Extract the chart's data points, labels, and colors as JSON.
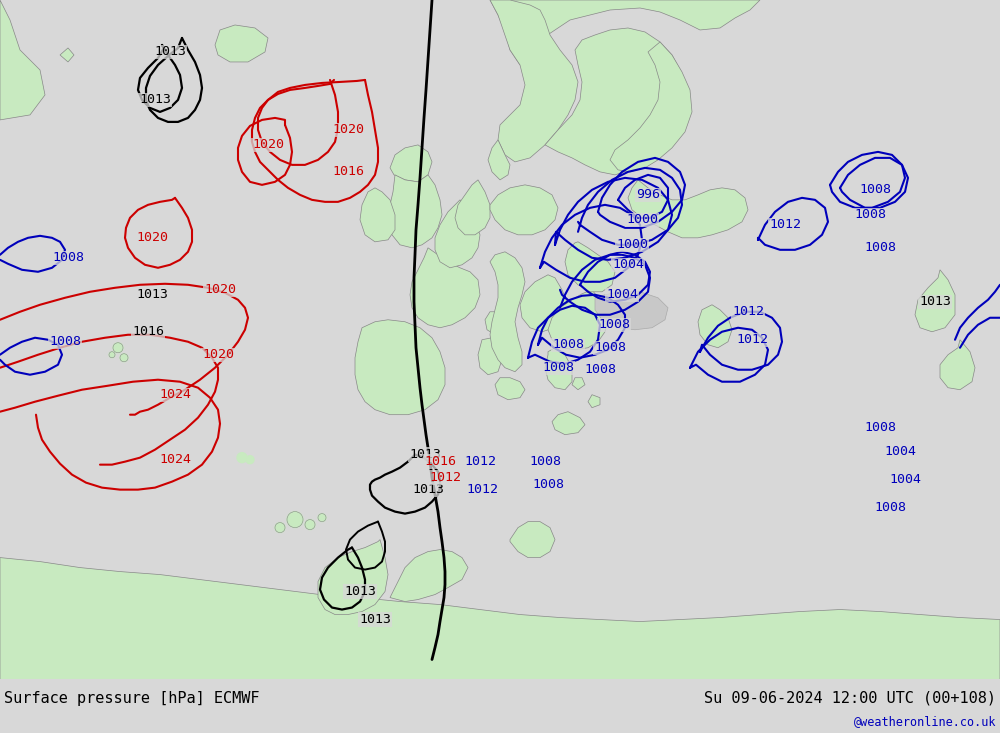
{
  "title_left": "Surface pressure [hPa] ECMWF",
  "title_right": "Su 09-06-2024 12:00 UTC (00+108)",
  "watermark": "@weatheronline.co.uk",
  "bg_color": "#d8d8d8",
  "land_color": "#c8eac0",
  "sea_color": "#d8d8d8",
  "coast_color": "#888888",
  "font_color_black": "#000000",
  "font_color_blue": "#0000bb",
  "font_color_red": "#cc0000",
  "isobar_black_color": "#000000",
  "isobar_blue_color": "#0000bb",
  "isobar_red_color": "#cc0000",
  "bottom_bar_color": "#ffffff",
  "figsize": [
    10.0,
    7.33
  ],
  "dpi": 100
}
